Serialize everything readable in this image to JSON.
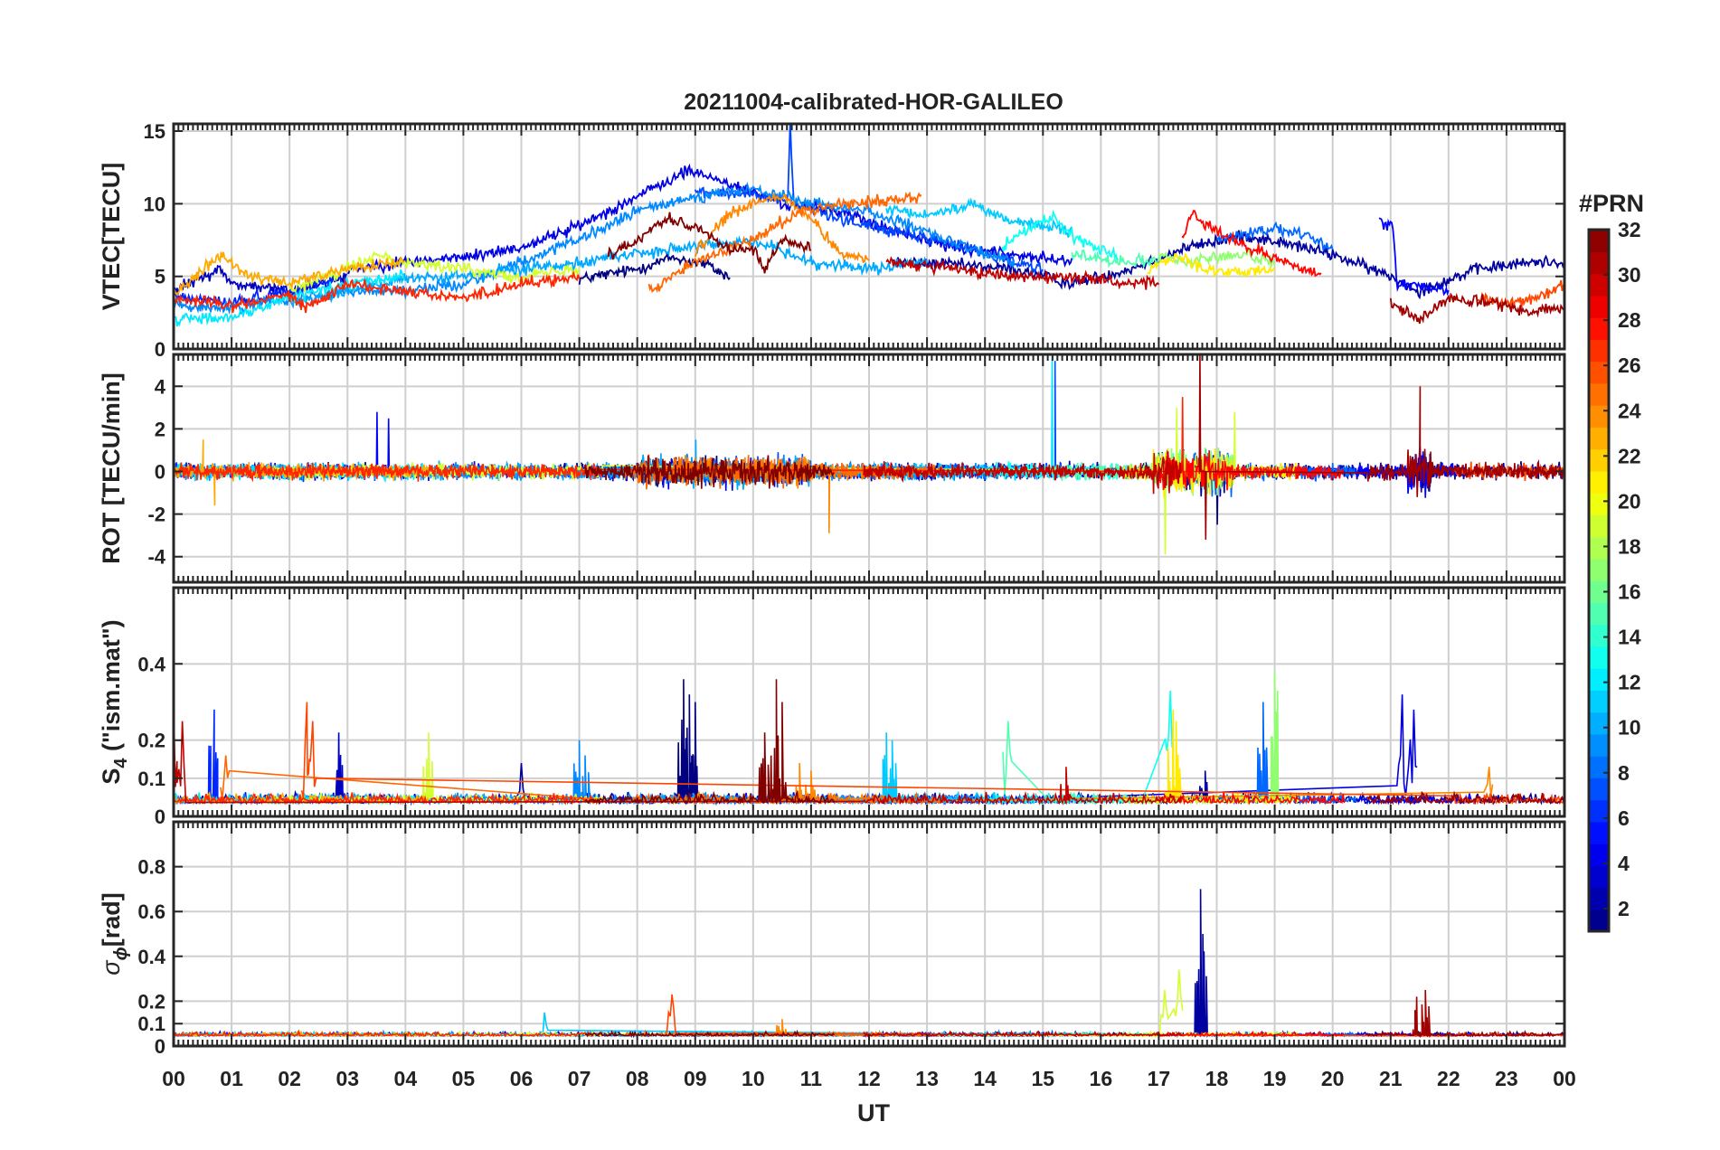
{
  "chart_data": {
    "type": "line",
    "title": "20211004-calibrated-HOR-GALILEO",
    "xlabel": "UT",
    "x_range_hours": [
      0,
      24
    ],
    "x_tick_labels": [
      "00",
      "01",
      "02",
      "03",
      "04",
      "05",
      "06",
      "07",
      "08",
      "09",
      "10",
      "11",
      "12",
      "13",
      "14",
      "15",
      "16",
      "17",
      "18",
      "19",
      "20",
      "21",
      "22",
      "23",
      "00"
    ],
    "panels": [
      {
        "id": "vtec",
        "ylabel": "VTEC[TECU]",
        "ylim": [
          0,
          15.5
        ],
        "ytick_values": [
          0,
          5,
          10,
          15
        ],
        "ytick_labels": [
          "0",
          "5",
          "10",
          "15"
        ]
      },
      {
        "id": "rot",
        "ylabel": "ROT [TECU/min]",
        "ylim": [
          -5.2,
          5.5
        ],
        "ytick_values": [
          -4,
          -2,
          0,
          2,
          4
        ],
        "ytick_labels": [
          "-4",
          "-2",
          "0",
          "2",
          "4"
        ]
      },
      {
        "id": "s4",
        "ylabel_main": "S",
        "ylabel_sub": "4",
        "ylabel_rest": " (\"ism.mat\")",
        "ylim": [
          0,
          0.6
        ],
        "ytick_values": [
          0,
          0.1,
          0.2,
          0.4
        ],
        "ytick_labels": [
          "0",
          "0.1",
          "0.2",
          "0.4"
        ]
      },
      {
        "id": "sigma",
        "ylabel_main": "σ",
        "ylabel_sub": "ϕ",
        "ylabel_rest": "[rad]",
        "ylim": [
          0,
          1.0
        ],
        "ytick_values": [
          0,
          0.1,
          0.2,
          0.4,
          0.6,
          0.8
        ],
        "ytick_labels": [
          "0",
          "0.1",
          "0.2",
          "0.4",
          "0.6",
          "0.8"
        ]
      }
    ],
    "colorbar": {
      "label": "#PRN",
      "range": [
        1,
        32
      ],
      "colormap": "jet",
      "tick_values": [
        2,
        4,
        6,
        8,
        10,
        12,
        14,
        16,
        18,
        20,
        22,
        24,
        26,
        28,
        30,
        32
      ],
      "tick_labels": [
        "2",
        "4",
        "6",
        "8",
        "10",
        "12",
        "14",
        "16",
        "18",
        "20",
        "22",
        "24",
        "26",
        "28",
        "30",
        "32"
      ]
    },
    "series": [
      {
        "prn": 1,
        "vtec": [
          [
            7.0,
            4.8
          ],
          [
            8.0,
            5.5
          ],
          [
            8.6,
            6.3
          ],
          [
            9.2,
            5.8
          ],
          [
            9.6,
            4.9
          ]
        ],
        "s4_spikes": [
          [
            8.8,
            0.36
          ],
          [
            8.9,
            0.32
          ],
          [
            9.0,
            0.3
          ]
        ],
        "rot_spikes": [
          [
            18.0,
            -2.5
          ]
        ]
      },
      {
        "prn": 2,
        "vtec": [
          [
            12.4,
            6.0
          ],
          [
            13.5,
            5.8
          ],
          [
            14.5,
            5.5
          ],
          [
            15.5,
            4.5
          ],
          [
            16.5,
            5.5
          ],
          [
            17.5,
            7.0
          ],
          [
            18.5,
            7.8
          ],
          [
            19.5,
            7.0
          ],
          [
            20.0,
            6.5
          ],
          [
            21.0,
            5.0
          ],
          [
            21.5,
            4.0
          ],
          [
            22.5,
            5.5
          ],
          [
            23.5,
            6.0
          ],
          [
            24.0,
            6.0
          ]
        ],
        "s4_spikes": [
          [
            6.0,
            0.14
          ],
          [
            17.8,
            0.12
          ]
        ],
        "sigma_spikes": [
          [
            17.72,
            0.7
          ],
          [
            17.76,
            0.5
          ]
        ]
      },
      {
        "prn": 3,
        "vtec": [
          [
            0.0,
            4.0
          ],
          [
            0.8,
            5.5
          ],
          [
            1.0,
            4.5
          ],
          [
            2.0,
            4.0
          ],
          [
            3.0,
            5.0
          ]
        ],
        "s4_spikes": [
          [
            2.85,
            0.22
          ]
        ]
      },
      {
        "prn": 4,
        "vtec": [
          [
            3.0,
            5.5
          ],
          [
            4.0,
            6.0
          ],
          [
            5.0,
            6.3
          ],
          [
            6.0,
            7.0
          ],
          [
            7.0,
            8.5
          ],
          [
            8.0,
            10.5
          ],
          [
            8.9,
            12.3
          ],
          [
            9.5,
            11.5
          ],
          [
            10.5,
            10.0
          ],
          [
            11.5,
            9.5
          ],
          [
            12.5,
            8.0
          ],
          [
            13.5,
            7.0
          ],
          [
            14.5,
            6.5
          ],
          [
            15.5,
            6.0
          ]
        ],
        "s4_spikes": [
          [
            21.2,
            0.32
          ],
          [
            21.4,
            0.28
          ]
        ]
      },
      {
        "prn": 5,
        "vtec": [
          [
            20.8,
            8.7
          ],
          [
            21.05,
            8.5
          ],
          [
            21.1,
            4.5
          ],
          [
            22.0,
            4.0
          ]
        ],
        "rot_spikes": [
          [
            3.5,
            2.8
          ],
          [
            3.7,
            2.5
          ]
        ]
      },
      {
        "prn": 6,
        "vtec": [
          [
            0.0,
            3.6
          ],
          [
            1.0,
            3.2
          ],
          [
            2.0,
            4.0
          ],
          [
            3.0,
            5.0
          ]
        ],
        "s4_spikes": [
          [
            0.7,
            0.28
          ]
        ]
      },
      {
        "prn": 7,
        "vtec": [
          [
            9.0,
            10.8
          ],
          [
            10.0,
            10.6
          ],
          [
            10.6,
            10.2
          ],
          [
            10.64,
            15.5
          ],
          [
            10.7,
            10.0
          ],
          [
            11.5,
            9.0
          ],
          [
            12.5,
            8.0
          ],
          [
            13.5,
            7.2
          ],
          [
            14.5,
            6.0
          ],
          [
            15.0,
            5.5
          ]
        ],
        "rot_spikes": [
          [
            15.2,
            5.2
          ]
        ]
      },
      {
        "prn": 8,
        "vtec": [
          [
            18.0,
            7.5
          ],
          [
            18.5,
            8.0
          ],
          [
            19.0,
            8.3
          ],
          [
            19.5,
            7.8
          ],
          [
            20.0,
            7.0
          ]
        ],
        "s4_spikes": [
          [
            18.8,
            0.3
          ]
        ]
      },
      {
        "prn": 9,
        "vtec": [
          [
            0.0,
            3.0
          ],
          [
            1.0,
            2.8
          ],
          [
            2.0,
            3.5
          ],
          [
            3.0,
            4.0
          ],
          [
            4.0,
            4.0
          ],
          [
            5.0,
            4.5
          ],
          [
            6.0,
            6.0
          ],
          [
            7.0,
            7.5
          ],
          [
            8.0,
            9.5
          ],
          [
            9.0,
            10.5
          ],
          [
            10.0,
            11.0
          ],
          [
            11.0,
            10.0
          ],
          [
            12.0,
            9.5
          ],
          [
            13.0,
            8.0
          ],
          [
            14.0,
            6.5
          ],
          [
            14.5,
            6.0
          ]
        ],
        "s4_spikes": [
          [
            7.0,
            0.2
          ],
          [
            7.1,
            0.16
          ]
        ]
      },
      {
        "prn": 10,
        "vtec": [
          [
            2.0,
            3.2
          ],
          [
            3.0,
            4.0
          ],
          [
            4.0,
            4.8
          ],
          [
            5.0,
            5.0
          ],
          [
            6.0,
            5.5
          ],
          [
            7.0,
            6.0
          ],
          [
            8.0,
            6.6
          ],
          [
            9.0,
            7.0
          ],
          [
            10.0,
            7.5
          ],
          [
            11.0,
            6.0
          ],
          [
            12.0,
            5.5
          ],
          [
            13.0,
            6.0
          ]
        ],
        "rot_spikes": [
          [
            9.0,
            1.5
          ]
        ]
      },
      {
        "prn": 11,
        "vtec": [
          [
            12.3,
            9.5
          ],
          [
            13.0,
            9.2
          ],
          [
            13.8,
            10.0
          ],
          [
            14.3,
            9.0
          ],
          [
            15.0,
            8.5
          ],
          [
            15.5,
            8.0
          ]
        ],
        "s4_spikes": [
          [
            12.3,
            0.22
          ],
          [
            12.4,
            0.2
          ]
        ],
        "sigma_spikes": [
          [
            6.4,
            0.15
          ]
        ]
      },
      {
        "prn": 12,
        "vtec": [
          [
            0.0,
            2.0
          ],
          [
            1.0,
            2.2
          ],
          [
            2.0,
            3.5
          ],
          [
            3.0,
            4.5
          ],
          [
            4.0,
            5.0
          ]
        ],
        "rot_spikes": [
          [
            15.15,
            5.4
          ]
        ]
      },
      {
        "prn": 13,
        "vtec": [
          [
            14.3,
            7.0
          ],
          [
            14.8,
            8.5
          ],
          [
            15.2,
            9.0
          ],
          [
            15.6,
            7.5
          ],
          [
            16.3,
            6.5
          ]
        ],
        "s4_spikes": [
          [
            17.2,
            0.33
          ]
        ]
      },
      {
        "prn": 15,
        "vtec": [
          [
            15.5,
            6.5
          ],
          [
            16.5,
            6.0
          ],
          [
            17.0,
            6.2
          ]
        ],
        "s4_spikes": [
          [
            14.4,
            0.25
          ]
        ]
      },
      {
        "prn": 17,
        "vtec": [
          [
            17.0,
            6.5
          ],
          [
            17.5,
            6.0
          ],
          [
            18.0,
            6.3
          ],
          [
            18.5,
            6.5
          ],
          [
            19.0,
            6.0
          ]
        ],
        "s4_spikes": [
          [
            19.0,
            0.38
          ],
          [
            19.05,
            0.33
          ]
        ]
      },
      {
        "prn": 19,
        "vtec": [
          [
            2.0,
            4.0
          ],
          [
            3.0,
            5.5
          ],
          [
            3.5,
            6.5
          ],
          [
            4.0,
            6.0
          ],
          [
            5.0,
            5.5
          ],
          [
            6.0,
            5.0
          ],
          [
            7.0,
            5.5
          ]
        ],
        "s4_spikes": [
          [
            4.4,
            0.22
          ]
        ],
        "rot_spikes": [
          [
            17.1,
            -3.9
          ],
          [
            17.3,
            3.0
          ],
          [
            18.3,
            2.8
          ]
        ],
        "sigma_spikes": [
          [
            17.1,
            0.25
          ],
          [
            17.35,
            0.34
          ]
        ]
      },
      {
        "prn": 21,
        "vtec": [
          [
            16.8,
            5.5
          ],
          [
            17.3,
            6.5
          ],
          [
            17.8,
            5.5
          ],
          [
            18.4,
            5.2
          ],
          [
            19.0,
            5.5
          ]
        ],
        "s4_spikes": [
          [
            17.25,
            0.28
          ],
          [
            17.3,
            0.25
          ]
        ]
      },
      {
        "prn": 23,
        "vtec": [
          [
            0.0,
            3.8
          ],
          [
            0.8,
            6.5
          ],
          [
            1.3,
            5.0
          ],
          [
            2.0,
            4.5
          ],
          [
            3.0,
            5.5
          ],
          [
            4.0,
            6.0
          ]
        ],
        "rot_spikes": [
          [
            0.5,
            1.5
          ],
          [
            0.7,
            -1.6
          ]
        ]
      },
      {
        "prn": 24,
        "vtec": [
          [
            9.0,
            6.5
          ],
          [
            9.5,
            9.0
          ],
          [
            10.0,
            10.0
          ],
          [
            10.5,
            10.5
          ],
          [
            11.0,
            9.0
          ],
          [
            11.5,
            6.5
          ],
          [
            12.0,
            6.2
          ]
        ],
        "s4_spikes": [
          [
            10.8,
            0.14
          ],
          [
            11.0,
            0.12
          ],
          [
            22.7,
            0.13
          ]
        ],
        "rot_spikes": [
          [
            11.3,
            -2.9
          ]
        ],
        "sigma_spikes": [
          [
            10.5,
            0.12
          ]
        ]
      },
      {
        "prn": 25,
        "vtec": [
          [
            8.2,
            4.0
          ],
          [
            9.0,
            6.0
          ],
          [
            10.0,
            7.5
          ],
          [
            10.8,
            9.5
          ],
          [
            11.5,
            10.0
          ],
          [
            12.3,
            10.2
          ],
          [
            12.9,
            10.5
          ]
        ],
        "s4_spikes": [
          [
            0.9,
            0.16
          ]
        ]
      },
      {
        "prn": 26,
        "vtec": [
          [
            22.5,
            3.5
          ],
          [
            23.0,
            3.2
          ],
          [
            23.5,
            3.5
          ],
          [
            24.0,
            4.5
          ]
        ],
        "s4_spikes": [
          [
            2.3,
            0.3
          ],
          [
            2.4,
            0.25
          ]
        ],
        "sigma_spikes": [
          [
            8.6,
            0.23
          ]
        ]
      },
      {
        "prn": 27,
        "vtec": [
          [
            0.0,
            3.5
          ],
          [
            1.0,
            3.0
          ],
          [
            2.0,
            3.8
          ],
          [
            2.3,
            2.8
          ],
          [
            3.0,
            4.5
          ],
          [
            4.0,
            4.0
          ],
          [
            5.0,
            3.5
          ],
          [
            6.0,
            4.5
          ],
          [
            7.0,
            5.0
          ]
        ],
        "rot_spikes": [
          [
            17.4,
            3.5
          ],
          [
            17.7,
            2.5
          ]
        ]
      },
      {
        "prn": 28,
        "vtec": [
          [
            17.4,
            7.5
          ],
          [
            17.6,
            9.5
          ],
          [
            17.8,
            8.5
          ],
          [
            18.5,
            7.0
          ],
          [
            19.2,
            6.0
          ],
          [
            19.8,
            5.0
          ]
        ]
      },
      {
        "prn": 30,
        "vtec": [
          [
            12.3,
            6.0
          ],
          [
            13.5,
            5.5
          ],
          [
            14.5,
            5.0
          ],
          [
            15.5,
            5.0
          ],
          [
            16.5,
            4.5
          ],
          [
            17.0,
            4.5
          ]
        ],
        "s4_spikes": [
          [
            0.0,
            0.3
          ],
          [
            0.15,
            0.25
          ],
          [
            15.4,
            0.13
          ]
        ]
      },
      {
        "prn": 31,
        "vtec": [
          [
            21.0,
            3.2
          ],
          [
            21.5,
            2.0
          ],
          [
            22.0,
            3.5
          ],
          [
            23.0,
            3.0
          ],
          [
            23.3,
            2.5
          ],
          [
            24.0,
            3.0
          ]
        ],
        "rot_spikes": [
          [
            17.7,
            5.5
          ],
          [
            17.8,
            -3.2
          ],
          [
            21.5,
            4.0
          ]
        ],
        "sigma_spikes": [
          [
            21.45,
            0.22
          ],
          [
            21.6,
            0.25
          ]
        ]
      },
      {
        "prn": 32,
        "vtec": [
          [
            7.5,
            6.5
          ],
          [
            8.0,
            7.5
          ],
          [
            8.5,
            9.0
          ],
          [
            9.0,
            8.5
          ],
          [
            9.5,
            7.0
          ],
          [
            10.0,
            6.8
          ],
          [
            10.2,
            5.5
          ],
          [
            10.5,
            7.5
          ],
          [
            11.0,
            7.0
          ]
        ],
        "s4_spikes": [
          [
            10.4,
            0.36
          ],
          [
            10.5,
            0.3
          ],
          [
            10.2,
            0.22
          ]
        ]
      }
    ]
  }
}
